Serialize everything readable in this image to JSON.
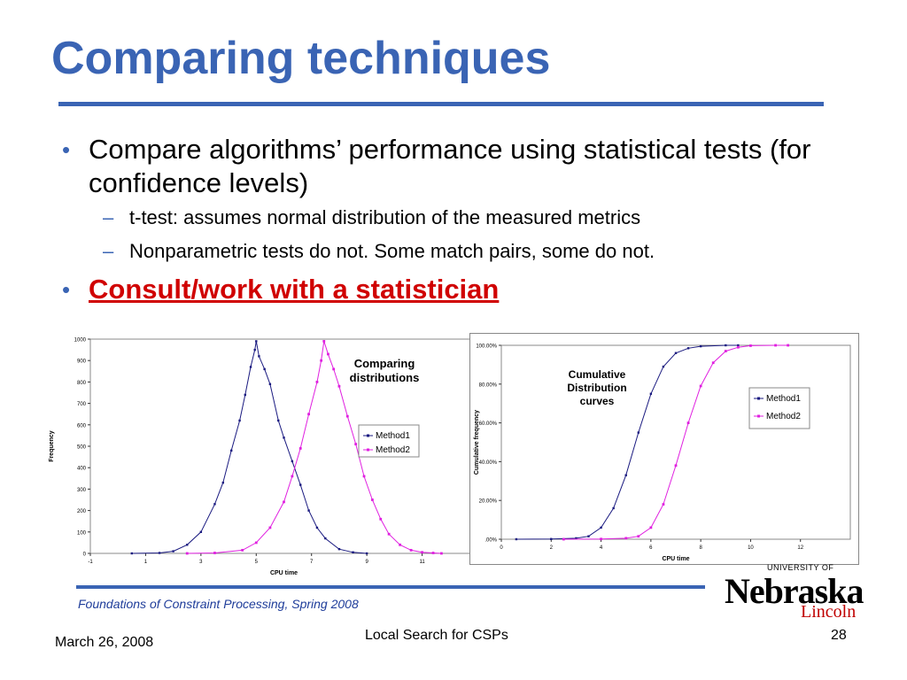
{
  "slide": {
    "title": "Comparing techniques",
    "bullets": [
      {
        "text": "Compare algorithms’ performance using statistical tests (for confidence levels)"
      },
      {
        "text": "Consult/work with a statistician"
      }
    ],
    "sub_bullets": [
      "t-test: assumes normal distribution of the measured metrics",
      "Nonparametric tests do not. Some match pairs, some do not."
    ],
    "bullet_marker": "•",
    "sub_marker": "–",
    "colors": {
      "title": "#3a64b4",
      "emphasis": "#d00000",
      "method1": "#1a1a80",
      "method2": "#e020e0"
    }
  },
  "footer": {
    "course": "Foundations of Constraint Processing, Spring 2008",
    "date": "March 26, 2008",
    "center": "Local Search for CSPs",
    "page": "28"
  },
  "logo": {
    "university": "UNIVERSITY OF",
    "name": "Nebraska",
    "campus": "Lincoln"
  },
  "chart_data": [
    {
      "type": "line",
      "annotation": "Comparing distributions",
      "xlabel": "CPU time",
      "ylabel": "Frequency",
      "xlim": [
        -1,
        13
      ],
      "ylim": [
        0,
        1000
      ],
      "xticks": [
        -1,
        1,
        3,
        5,
        7,
        9,
        11,
        13
      ],
      "yticks": [
        0,
        100,
        200,
        300,
        400,
        500,
        600,
        700,
        800,
        900,
        1000
      ],
      "legend_position": "right",
      "series": [
        {
          "name": "Method1",
          "color": "#1a1a80",
          "x": [
            0.5,
            1.5,
            2.0,
            2.5,
            3.0,
            3.5,
            3.8,
            4.1,
            4.4,
            4.6,
            4.8,
            4.95,
            5.0,
            5.1,
            5.3,
            5.5,
            5.8,
            6.0,
            6.3,
            6.6,
            6.9,
            7.2,
            7.5,
            8.0,
            8.5,
            9.0
          ],
          "y": [
            0,
            2,
            10,
            40,
            100,
            230,
            330,
            480,
            620,
            740,
            870,
            950,
            990,
            920,
            860,
            790,
            620,
            540,
            430,
            320,
            200,
            120,
            70,
            20,
            5,
            0
          ]
        },
        {
          "name": "Method2",
          "color": "#e020e0",
          "x": [
            2.5,
            3.5,
            4.5,
            5.0,
            5.5,
            6.0,
            6.3,
            6.6,
            6.9,
            7.2,
            7.35,
            7.45,
            7.6,
            7.8,
            8.0,
            8.3,
            8.6,
            8.9,
            9.2,
            9.5,
            9.8,
            10.2,
            10.6,
            11.0,
            11.4,
            11.7
          ],
          "y": [
            0,
            2,
            15,
            50,
            120,
            240,
            360,
            490,
            650,
            800,
            900,
            990,
            930,
            860,
            780,
            640,
            510,
            360,
            250,
            160,
            90,
            40,
            15,
            5,
            2,
            0
          ]
        }
      ]
    },
    {
      "type": "line",
      "annotation": "Cumulative Distribution curves",
      "xlabel": "CPU time",
      "ylabel": "Cumulative frequency",
      "xlim": [
        0,
        14
      ],
      "ylim": [
        0,
        100
      ],
      "xticks": [
        0,
        2,
        4,
        6,
        8,
        10,
        12
      ],
      "ytick_labels": [
        ".00%",
        "20.00%",
        "40.00%",
        "60.00%",
        "80.00%",
        "100.00%"
      ],
      "yticks": [
        0,
        20,
        40,
        60,
        80,
        100
      ],
      "legend_position": "right",
      "series": [
        {
          "name": "Method1",
          "color": "#1a1a80",
          "x": [
            0.6,
            2.0,
            3.0,
            3.5,
            4.0,
            4.5,
            5.0,
            5.5,
            6.0,
            6.5,
            7.0,
            7.5,
            8.0,
            9.0,
            9.5
          ],
          "y": [
            0,
            0.1,
            0.5,
            1.5,
            6,
            16,
            33,
            55,
            75,
            89,
            96,
            98.5,
            99.5,
            100,
            100
          ]
        },
        {
          "name": "Method2",
          "color": "#e020e0",
          "x": [
            2.5,
            4.0,
            5.0,
            5.5,
            6.0,
            6.5,
            7.0,
            7.5,
            8.0,
            8.5,
            9.0,
            9.5,
            10.0,
            11.0,
            11.5
          ],
          "y": [
            0,
            0.1,
            0.5,
            1.5,
            6,
            18,
            38,
            60,
            79,
            91,
            97,
            99,
            99.8,
            100,
            100
          ]
        }
      ]
    }
  ]
}
